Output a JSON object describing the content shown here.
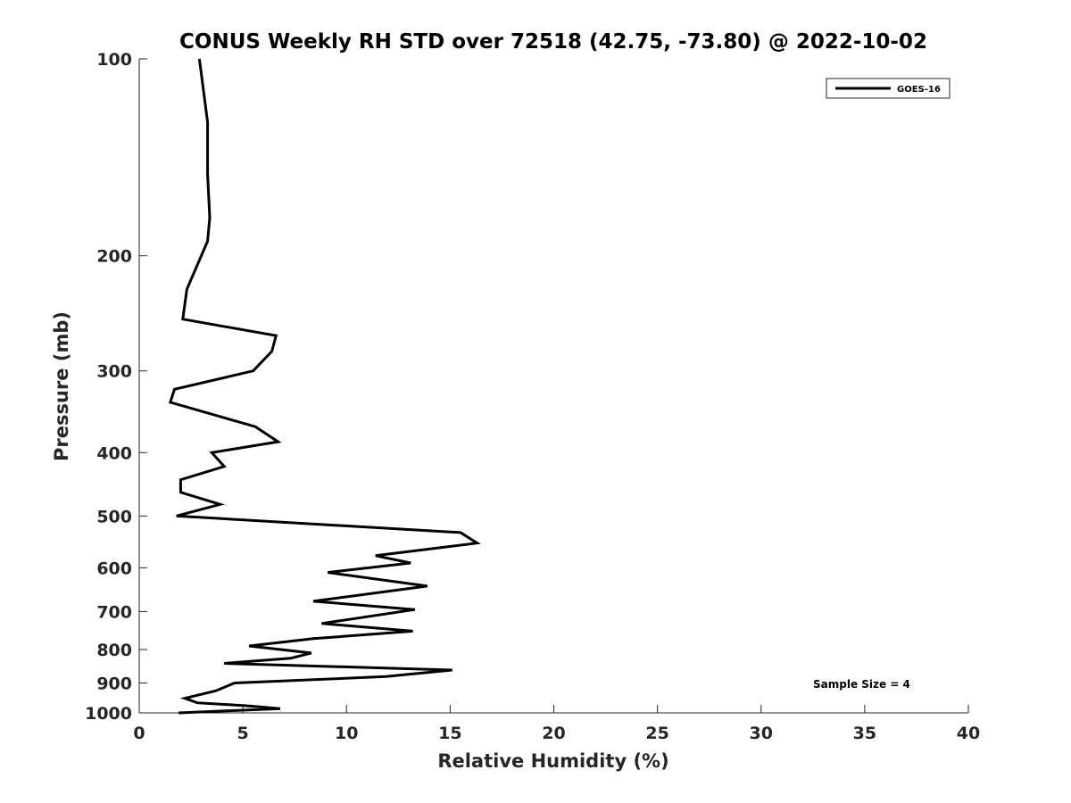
{
  "chart_data": {
    "type": "line",
    "title": "CONUS Weekly RH STD over 72518 (42.75, -73.80) @ 2022-10-02",
    "xlabel": "Relative Humidity (%)",
    "ylabel": "Pressure (mb)",
    "xlim": [
      0,
      40
    ],
    "ylim": [
      1000,
      100
    ],
    "y_scale": "log",
    "y_reversed": true,
    "grid": false,
    "legend_position": "top-right",
    "x_ticks": [
      "0",
      "5",
      "10",
      "15",
      "20",
      "25",
      "30",
      "35",
      "40"
    ],
    "y_ticks": [
      "100",
      "200",
      "300",
      "400",
      "500",
      "600",
      "700",
      "800",
      "900",
      "1000"
    ],
    "series": [
      {
        "name": "GOES-16",
        "color": "#000000",
        "x": [
          2.9,
          3.3,
          3.3,
          3.4,
          3.3,
          2.3,
          2.1,
          6.6,
          6.4,
          5.5,
          1.7,
          1.5,
          5.6,
          6.7,
          3.5,
          4.1,
          2.0,
          2.0,
          3.9,
          1.8,
          15.5,
          16.3,
          11.4,
          13.1,
          9.1,
          13.9,
          8.4,
          13.3,
          8.8,
          13.2,
          8.4,
          5.3,
          8.3,
          7.3,
          4.1,
          15.1,
          11.9,
          4.6,
          3.7,
          2.2,
          2.8,
          5.1,
          6.8,
          1.9
        ],
        "y": [
          100,
          125,
          150,
          175,
          190,
          225,
          250,
          265,
          280,
          300,
          320,
          335,
          365,
          385,
          400,
          420,
          440,
          460,
          480,
          500,
          530,
          550,
          575,
          590,
          610,
          640,
          675,
          695,
          730,
          750,
          770,
          790,
          810,
          825,
          840,
          860,
          880,
          900,
          925,
          950,
          965,
          975,
          985,
          1000
        ]
      }
    ],
    "annotations": [
      "Sample Size = 4"
    ]
  }
}
